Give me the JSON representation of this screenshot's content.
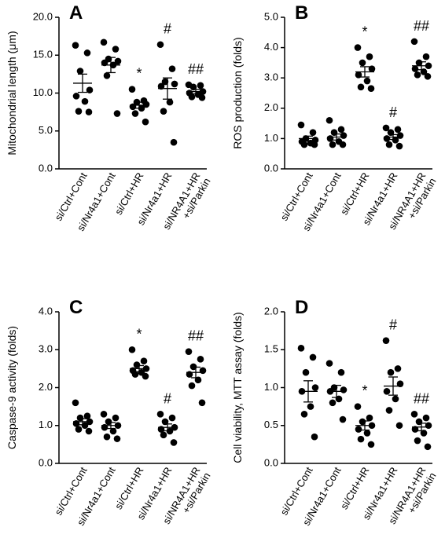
{
  "chart_data": [
    {
      "type": "dot",
      "panel_label": "A",
      "ylabel": "Mitochondrial length (μm)",
      "ylim": [
        0,
        20
      ],
      "yticks": [
        {
          "value": 0,
          "label": "0.0"
        },
        {
          "value": 5,
          "label": "5.0"
        },
        {
          "value": 10,
          "label": "10.0"
        },
        {
          "value": 15,
          "label": "15.0"
        },
        {
          "value": 20,
          "label": "20.0"
        }
      ],
      "categories": [
        [
          "si/Ctrl+Cont"
        ],
        [
          "si/Nr4a1+Cont"
        ],
        [
          "si/Ctrl+HR"
        ],
        [
          "si/Nr4a1+HR"
        ],
        [
          "si/NR4A1+HR",
          "+si/Parkin"
        ]
      ],
      "points": [
        [
          16.3,
          15.3,
          12.9,
          10.4,
          9.6,
          8.9,
          7.6,
          7.5
        ],
        [
          16.7,
          15.8,
          14.5,
          14.2,
          14.0,
          13.7,
          12.3,
          7.3
        ],
        [
          10.5,
          9.0,
          8.8,
          8.5,
          8.2,
          8.0,
          7.3,
          6.2
        ],
        [
          16.4,
          13.2,
          11.5,
          11.2,
          10.9,
          8.8,
          7.6,
          3.5
        ],
        [
          11.1,
          11.0,
          10.8,
          10.2,
          10.0,
          9.8,
          9.5,
          9.4
        ]
      ],
      "means": [
        11.3,
        13.7,
        8.4,
        10.6,
        10.2
      ],
      "sem": [
        1.2,
        1.0,
        0.4,
        1.4,
        0.3
      ],
      "annotations": [
        null,
        null,
        "*",
        "#",
        "##"
      ],
      "color": "#000000"
    },
    {
      "type": "dot",
      "panel_label": "B",
      "ylabel": "ROS production (folds)",
      "ylim": [
        0,
        5
      ],
      "yticks": [
        {
          "value": 0,
          "label": "0.0"
        },
        {
          "value": 1,
          "label": "1.0"
        },
        {
          "value": 2,
          "label": "2.0"
        },
        {
          "value": 3,
          "label": "3.0"
        },
        {
          "value": 4,
          "label": "4.0"
        },
        {
          "value": 5,
          "label": "5.0"
        }
      ],
      "categories": [
        [
          "si/Ctrl+Cont"
        ],
        [
          "si/Nr4a1+Cont"
        ],
        [
          "si/Ctrl+HR"
        ],
        [
          "si/Nr4a1+HR"
        ],
        [
          "si/NR4A1+HR",
          "+si/Parkin"
        ]
      ],
      "points": [
        [
          1.45,
          1.2,
          1.0,
          0.95,
          0.9,
          0.85,
          0.8,
          0.8
        ],
        [
          1.6,
          1.3,
          1.2,
          1.1,
          1.0,
          0.9,
          0.8,
          0.8
        ],
        [
          4.0,
          3.7,
          3.5,
          3.3,
          3.1,
          2.9,
          2.7,
          2.65
        ],
        [
          1.35,
          1.3,
          1.2,
          1.1,
          1.0,
          0.95,
          0.8,
          0.75
        ],
        [
          4.2,
          3.7,
          3.5,
          3.4,
          3.3,
          3.2,
          3.1,
          3.05
        ]
      ],
      "means": [
        1.0,
        1.05,
        3.2,
        1.05,
        3.4
      ],
      "sem": [
        0.08,
        0.1,
        0.17,
        0.08,
        0.13
      ],
      "annotations": [
        null,
        null,
        "*",
        "#",
        "##"
      ],
      "color": "#000000"
    },
    {
      "type": "dot",
      "panel_label": "C",
      "ylabel": "Caspase-9 activity (folds)",
      "ylim": [
        0,
        4
      ],
      "yticks": [
        {
          "value": 0,
          "label": "0.0"
        },
        {
          "value": 1,
          "label": "1.0"
        },
        {
          "value": 2,
          "label": "2.0"
        },
        {
          "value": 3,
          "label": "3.0"
        },
        {
          "value": 4,
          "label": "4.0"
        }
      ],
      "categories": [
        [
          "si/Ctrl+Cont"
        ],
        [
          "si/Nr4a1+Cont"
        ],
        [
          "si/Ctrl+HR"
        ],
        [
          "si/Nr4a1+HR"
        ],
        [
          "si/NR4A1+HR",
          "+si/Parkin"
        ]
      ],
      "points": [
        [
          1.6,
          1.25,
          1.2,
          1.1,
          1.05,
          1.0,
          0.9,
          0.85
        ],
        [
          1.3,
          1.2,
          1.1,
          1.0,
          0.95,
          0.85,
          0.7,
          0.65
        ],
        [
          3.0,
          2.7,
          2.6,
          2.5,
          2.45,
          2.4,
          2.35,
          2.3
        ],
        [
          1.3,
          1.2,
          1.1,
          0.95,
          0.9,
          0.85,
          0.75,
          0.55
        ],
        [
          2.95,
          2.75,
          2.55,
          2.45,
          2.35,
          2.2,
          2.05,
          1.6
        ]
      ],
      "means": [
        1.1,
        1.0,
        2.5,
        0.95,
        2.4
      ],
      "sem": [
        0.08,
        0.08,
        0.08,
        0.09,
        0.14
      ],
      "annotations": [
        null,
        null,
        "*",
        "#",
        "##"
      ],
      "color": "#000000"
    },
    {
      "type": "dot",
      "panel_label": "D",
      "ylabel": "Cell viability, MTT assay (folds)",
      "ylim": [
        0,
        2
      ],
      "yticks": [
        {
          "value": 0,
          "label": "0.0"
        },
        {
          "value": 0.5,
          "label": "0.5"
        },
        {
          "value": 1,
          "label": "1.0"
        },
        {
          "value": 1.5,
          "label": "1.5"
        },
        {
          "value": 2,
          "label": "2.0"
        }
      ],
      "categories": [
        [
          "si/Ctrl+Cont"
        ],
        [
          "si/Nr4a1+Cont"
        ],
        [
          "si/Ctrl+HR"
        ],
        [
          "si/Nr4a1+HR"
        ],
        [
          "si/NR4A1+HR",
          "+si/Parkin"
        ]
      ],
      "points": [
        [
          1.52,
          1.4,
          1.2,
          1.0,
          0.95,
          0.75,
          0.65,
          0.35
        ],
        [
          1.32,
          1.2,
          1.0,
          0.97,
          0.95,
          0.85,
          0.8,
          0.58
        ],
        [
          0.75,
          0.6,
          0.55,
          0.5,
          0.45,
          0.4,
          0.32,
          0.25
        ],
        [
          1.62,
          1.25,
          1.2,
          1.05,
          0.95,
          0.85,
          0.7,
          0.5
        ],
        [
          0.65,
          0.6,
          0.55,
          0.5,
          0.45,
          0.4,
          0.3,
          0.22
        ]
      ],
      "means": [
        0.95,
        0.95,
        0.5,
        1.02,
        0.48
      ],
      "sem": [
        0.14,
        0.08,
        0.06,
        0.12,
        0.05
      ],
      "annotations": [
        null,
        null,
        "*",
        "#",
        "##"
      ],
      "color": "#000000"
    }
  ]
}
